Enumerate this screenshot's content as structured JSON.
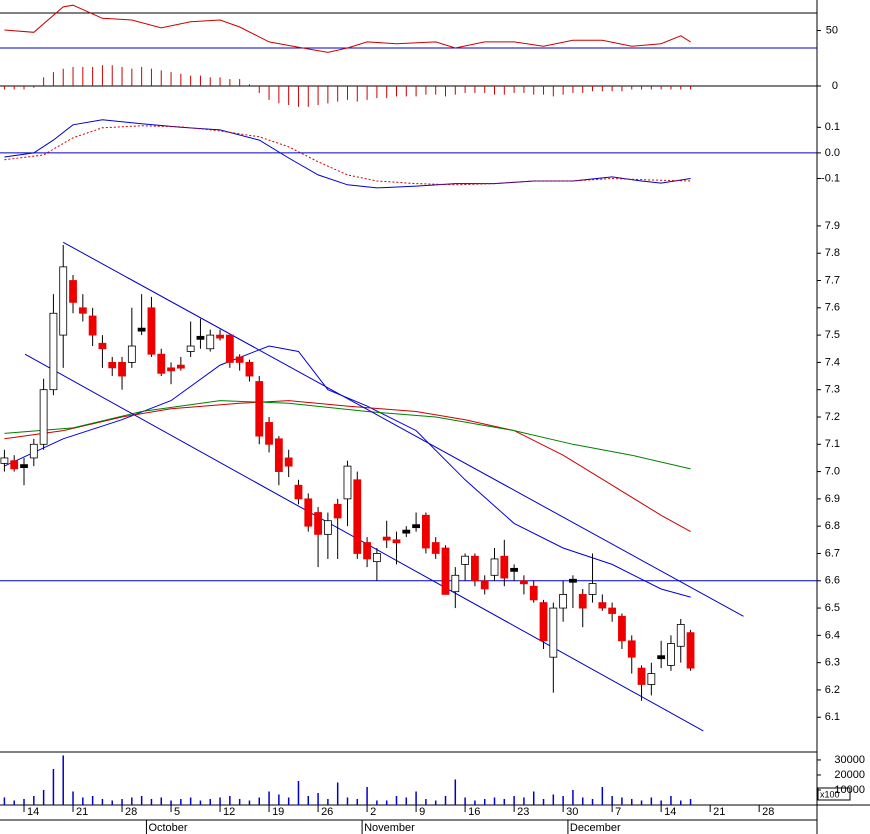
{
  "chart_data": {
    "type": "candlestick",
    "xlim": [
      -2.45,
      80.9
    ],
    "xticks": [
      {
        "value": 0,
        "label": "14"
      },
      {
        "value": 5,
        "label": "21"
      },
      {
        "value": 10,
        "label": "28"
      },
      {
        "value": 15,
        "label": "5"
      },
      {
        "value": 20,
        "label": "12"
      },
      {
        "value": 25,
        "label": "19"
      },
      {
        "value": 30,
        "label": "26"
      },
      {
        "value": 35,
        "label": "2"
      },
      {
        "value": 40,
        "label": "9"
      },
      {
        "value": 45,
        "label": "16"
      },
      {
        "value": 50,
        "label": "23"
      },
      {
        "value": 55,
        "label": "30"
      },
      {
        "value": 60,
        "label": "7"
      },
      {
        "value": 65,
        "label": "14"
      },
      {
        "value": 70,
        "label": "21"
      },
      {
        "value": 75,
        "label": "28"
      }
    ],
    "months": [
      {
        "value": 13,
        "label": "October"
      },
      {
        "value": 35,
        "label": "November"
      },
      {
        "value": 56,
        "label": "December"
      }
    ],
    "rsi": {
      "ylim": [
        18.6,
        84.9
      ],
      "yticks": [
        50
      ],
      "hlines": [
        70,
        30
      ],
      "color": "#cc0000",
      "x": [
        -2,
        1,
        4,
        5,
        8,
        11,
        14,
        17,
        20,
        22,
        25,
        28,
        31,
        33,
        35,
        38,
        42,
        44,
        47,
        50,
        53,
        56,
        59,
        62,
        65,
        67,
        68
      ],
      "values": [
        50.6,
        48,
        77,
        79,
        64,
        62,
        53,
        60,
        62,
        54,
        37,
        31,
        25,
        30,
        37,
        35,
        37,
        30,
        37,
        37,
        32,
        39,
        39,
        32,
        35,
        44,
        37
      ]
    },
    "histogram": {
      "ylim": [
        -0.015,
        0.015
      ],
      "yticks": [
        0
      ],
      "color": "#cc0000",
      "values": [
        -0.002,
        -0.002,
        -0.002,
        -0.001,
        0.005,
        0.008,
        0.01,
        0.011,
        0.011,
        0.011,
        0.012,
        0.012,
        0.011,
        0.01,
        0.011,
        0.01,
        0.009,
        0.008,
        0.007,
        0.006,
        0.006,
        0.005,
        0.005,
        0.004,
        0.004,
        0.001,
        -0.004,
        -0.008,
        -0.01,
        -0.011,
        -0.012,
        -0.012,
        -0.011,
        -0.01,
        -0.009,
        -0.008,
        -0.009,
        -0.008,
        -0.007,
        -0.007,
        -0.006,
        -0.006,
        -0.006,
        -0.005,
        -0.005,
        -0.006,
        -0.005,
        -0.004,
        -0.004,
        -0.004,
        -0.005,
        -0.005,
        -0.004,
        -0.004,
        -0.005,
        -0.005,
        -0.006,
        -0.005,
        -0.004,
        -0.004,
        -0.003,
        -0.003,
        -0.003,
        -0.003,
        -0.002,
        -0.002,
        -0.002,
        -0.002,
        -0.002,
        -0.002,
        -0.002
      ]
    },
    "macd": {
      "ylim": [
        -0.243,
        0.16
      ],
      "yticks": [
        0.1,
        {
          "value": 0,
          "label": "0.0"
        },
        -0.1
      ],
      "hlines": [
        0
      ],
      "series": [
        {
          "color": "#0000cc",
          "x": [
            -2,
            1,
            3,
            5,
            8,
            12,
            16,
            20,
            24,
            27,
            30,
            33,
            36,
            40,
            44,
            48,
            52,
            56,
            60,
            63,
            65,
            68
          ],
          "values": [
            -0.016,
            0,
            0.05,
            0.11,
            0.13,
            0.114,
            0.1,
            0.09,
            0.05,
            -0.02,
            -0.086,
            -0.125,
            -0.137,
            -0.13,
            -0.12,
            -0.12,
            -0.11,
            -0.11,
            -0.094,
            -0.11,
            -0.118,
            -0.1
          ]
        },
        {
          "color": "#cc0000",
          "dashed": true,
          "x": [
            -2,
            2,
            5,
            8,
            12,
            16,
            20,
            24,
            27,
            30,
            33,
            36,
            40,
            44,
            48,
            52,
            56,
            60,
            64,
            68
          ],
          "values": [
            -0.027,
            -0.008,
            0.059,
            0.098,
            0.106,
            0.102,
            0.086,
            0.063,
            0.024,
            -0.035,
            -0.086,
            -0.11,
            -0.12,
            -0.125,
            -0.12,
            -0.11,
            -0.11,
            -0.1,
            -0.106,
            -0.11
          ]
        }
      ]
    },
    "price": {
      "ylim": [
        5.98,
        7.94
      ],
      "yticks": [
        7.9,
        7.8,
        7.7,
        7.6,
        7.5,
        7.4,
        7.3,
        7.2,
        7.1,
        {
          "value": 7,
          "label": "7.0"
        },
        6.9,
        6.8,
        6.7,
        6.6,
        6.5,
        6.4,
        6.3,
        6.2,
        6.1
      ],
      "up_color": "#ffffff",
      "down_color": "#ee0000",
      "flat_color": "#000000",
      "hlines": [
        6.6
      ],
      "trendlines": [
        {
          "color": "#0000cc",
          "x": [
            4.0,
            73.4
          ],
          "values": [
            7.84,
            6.47
          ]
        },
        {
          "color": "#0000cc",
          "x": [
            0.1,
            69.3
          ],
          "values": [
            7.43,
            6.05
          ]
        }
      ],
      "moving_averages": [
        {
          "color": "#0000dd",
          "x": [
            -2,
            4,
            10,
            15,
            20,
            25,
            28,
            31,
            35,
            40,
            45,
            50,
            55,
            60,
            65,
            68
          ],
          "values": [
            7.02,
            7.12,
            7.19,
            7.26,
            7.39,
            7.46,
            7.44,
            7.3,
            7.24,
            7.15,
            6.97,
            6.81,
            6.72,
            6.66,
            6.57,
            6.54
          ]
        },
        {
          "color": "#cc0000",
          "x": [
            -2,
            4,
            10,
            15,
            22,
            27,
            33,
            40,
            45,
            50,
            55,
            60,
            65,
            68
          ],
          "values": [
            7.12,
            7.15,
            7.2,
            7.23,
            7.25,
            7.26,
            7.24,
            7.22,
            7.19,
            7.15,
            7.06,
            6.95,
            6.84,
            6.78
          ]
        },
        {
          "color": "#008000",
          "x": [
            -2,
            5,
            12,
            20,
            27,
            35,
            42,
            50,
            56,
            62,
            68
          ],
          "values": [
            7.14,
            7.16,
            7.22,
            7.26,
            7.25,
            7.22,
            7.2,
            7.15,
            7.1,
            7.06,
            7.01
          ]
        }
      ]
    },
    "candles": {
      "x": [
        -2,
        -1,
        0,
        1,
        2,
        3,
        4,
        5,
        6,
        7,
        8,
        9,
        10,
        11,
        12,
        13,
        14,
        15,
        16,
        17,
        18,
        19,
        20,
        21,
        22,
        23,
        24,
        25,
        26,
        27,
        28,
        29,
        30,
        31,
        32,
        33,
        34,
        35,
        36,
        37,
        38,
        39,
        40,
        41,
        42,
        43,
        44,
        45,
        46,
        47,
        48,
        49,
        50,
        51,
        52,
        53,
        54,
        55,
        56,
        57,
        58,
        59,
        60,
        61,
        62,
        63,
        64,
        65,
        66,
        67,
        68
      ],
      "open": [
        7.03,
        7.04,
        7.02,
        7.05,
        7.1,
        7.3,
        7.5,
        7.7,
        7.6,
        7.57,
        7.47,
        7.4,
        7.4,
        7.4,
        7.52,
        7.6,
        7.43,
        7.38,
        7.39,
        7.44,
        7.49,
        7.45,
        7.5,
        7.5,
        7.42,
        7.4,
        7.33,
        7.18,
        7.12,
        7.05,
        6.95,
        6.9,
        6.85,
        6.77,
        6.88,
        6.9,
        6.97,
        6.74,
        6.67,
        6.76,
        6.75,
        6.78,
        6.8,
        6.84,
        6.74,
        6.72,
        6.56,
        6.66,
        6.69,
        6.6,
        6.62,
        6.69,
        6.64,
        6.6,
        6.58,
        6.52,
        6.32,
        6.5,
        6.6,
        6.55,
        6.55,
        6.52,
        6.5,
        6.47,
        6.38,
        6.28,
        6.22,
        6.32,
        6.29,
        6.36,
        6.41
      ],
      "high": [
        7.08,
        7.06,
        7.05,
        7.12,
        7.34,
        7.65,
        7.83,
        7.72,
        7.65,
        7.6,
        7.5,
        7.42,
        7.42,
        7.6,
        7.65,
        7.64,
        7.45,
        7.4,
        7.42,
        7.55,
        7.56,
        7.52,
        7.52,
        7.5,
        7.43,
        7.41,
        7.35,
        7.2,
        7.13,
        7.08,
        6.97,
        6.92,
        6.87,
        6.85,
        6.9,
        7.04,
        7.0,
        6.76,
        6.72,
        6.82,
        6.78,
        6.8,
        6.85,
        6.85,
        6.76,
        6.73,
        6.65,
        6.7,
        6.7,
        6.62,
        6.72,
        6.75,
        6.66,
        6.62,
        6.6,
        6.53,
        6.52,
        6.6,
        6.62,
        6.57,
        6.7,
        6.55,
        6.52,
        6.48,
        6.4,
        6.29,
        6.3,
        6.38,
        6.4,
        6.46,
        6.42
      ],
      "low": [
        7.0,
        7.0,
        6.95,
        7.02,
        7.08,
        7.28,
        7.38,
        7.58,
        7.55,
        7.46,
        7.38,
        7.35,
        7.3,
        7.38,
        7.5,
        7.42,
        7.35,
        7.32,
        7.37,
        7.42,
        7.45,
        7.44,
        7.48,
        7.38,
        7.37,
        7.33,
        7.1,
        7.07,
        6.95,
        6.98,
        6.88,
        6.78,
        6.65,
        6.68,
        6.68,
        6.8,
        6.68,
        6.65,
        6.6,
        6.72,
        6.66,
        6.76,
        6.78,
        6.7,
        6.68,
        6.55,
        6.5,
        6.6,
        6.58,
        6.55,
        6.6,
        6.58,
        6.6,
        6.55,
        6.52,
        6.35,
        6.19,
        6.45,
        6.5,
        6.43,
        6.52,
        6.49,
        6.45,
        6.35,
        6.26,
        6.16,
        6.18,
        6.28,
        6.27,
        6.3,
        6.27
      ],
      "close": [
        7.05,
        7.01,
        7.02,
        7.1,
        7.3,
        7.58,
        7.75,
        7.62,
        7.58,
        7.5,
        7.45,
        7.38,
        7.35,
        7.46,
        7.52,
        7.43,
        7.36,
        7.37,
        7.38,
        7.46,
        7.49,
        7.5,
        7.49,
        7.4,
        7.4,
        7.35,
        7.13,
        7.1,
        7.0,
        7.02,
        6.9,
        6.8,
        6.77,
        6.82,
        6.83,
        7.02,
        6.7,
        6.68,
        6.7,
        6.75,
        6.74,
        6.78,
        6.8,
        6.72,
        6.7,
        6.55,
        6.62,
        6.69,
        6.6,
        6.57,
        6.68,
        6.61,
        6.64,
        6.59,
        6.53,
        6.38,
        6.5,
        6.55,
        6.6,
        6.5,
        6.59,
        6.5,
        6.48,
        6.38,
        6.32,
        6.22,
        6.26,
        6.32,
        6.37,
        6.44,
        6.28
      ]
    },
    "volume": {
      "ylim": [
        0,
        35300
      ],
      "yticks": [
        30000,
        20000,
        10000
      ],
      "unit": "x100",
      "color": "#0000cc",
      "values": [
        5000,
        3000,
        4000,
        6000,
        10000,
        24000,
        33000,
        9000,
        5000,
        6000,
        4000,
        3000,
        4000,
        5000,
        6000,
        4000,
        5000,
        3000,
        4000,
        5000,
        3000,
        4000,
        5000,
        6000,
        4000,
        3000,
        5000,
        9000,
        7000,
        5000,
        16000,
        6000,
        8000,
        4000,
        15000,
        5000,
        4000,
        12000,
        3000,
        3000,
        6000,
        5000,
        9000,
        4000,
        3000,
        6000,
        17000,
        5000,
        3000,
        4000,
        5000,
        4000,
        6000,
        5000,
        9000,
        4000,
        7000,
        6000,
        10000,
        5000,
        4000,
        12000,
        6000,
        5000,
        4000,
        3000,
        5000,
        3000,
        6000,
        3000,
        4000
      ]
    }
  }
}
